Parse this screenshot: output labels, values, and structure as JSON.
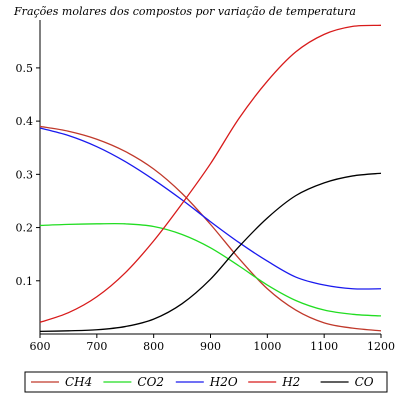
{
  "chart_data": {
    "type": "line",
    "title": "Frações molares dos compostos por variação de temperatura",
    "xlabel": "",
    "ylabel": "",
    "xlim": [
      600,
      1200
    ],
    "ylim": [
      0,
      0.59
    ],
    "x_ticks": [
      600,
      700,
      800,
      900,
      1000,
      1100,
      1200
    ],
    "y_ticks": [
      0.1,
      0.2,
      0.3,
      0.4,
      0.5
    ],
    "x_tick_labels": [
      "600",
      "700",
      "800",
      "900",
      "1000",
      "1100",
      "1200"
    ],
    "y_tick_labels": [
      "0.1",
      "0.2",
      "0.3",
      "0.4",
      "0.5"
    ],
    "grid": false,
    "legend_position": "bottom",
    "x": [
      600,
      650,
      700,
      750,
      800,
      850,
      900,
      950,
      1000,
      1050,
      1100,
      1150,
      1200
    ],
    "series": [
      {
        "name": "CH4",
        "color": "#c0392b",
        "values": [
          0.39,
          0.381,
          0.366,
          0.343,
          0.31,
          0.264,
          0.206,
          0.142,
          0.085,
          0.045,
          0.021,
          0.011,
          0.006
        ]
      },
      {
        "name": "CO2",
        "color": "#22dd22",
        "values": [
          0.204,
          0.206,
          0.207,
          0.207,
          0.202,
          0.187,
          0.162,
          0.128,
          0.092,
          0.063,
          0.045,
          0.037,
          0.034
        ]
      },
      {
        "name": "H2O",
        "color": "#1a1aee",
        "values": [
          0.387,
          0.373,
          0.352,
          0.324,
          0.29,
          0.252,
          0.211,
          0.172,
          0.137,
          0.107,
          0.092,
          0.085,
          0.085
        ]
      },
      {
        "name": "H2",
        "color": "#d81b1b",
        "values": [
          0.022,
          0.04,
          0.07,
          0.115,
          0.175,
          0.245,
          0.32,
          0.405,
          0.475,
          0.53,
          0.563,
          0.578,
          0.58
        ]
      },
      {
        "name": "CO",
        "color": "#000000",
        "values": [
          0.005,
          0.006,
          0.008,
          0.014,
          0.028,
          0.057,
          0.103,
          0.164,
          0.218,
          0.26,
          0.284,
          0.297,
          0.302
        ]
      }
    ]
  }
}
